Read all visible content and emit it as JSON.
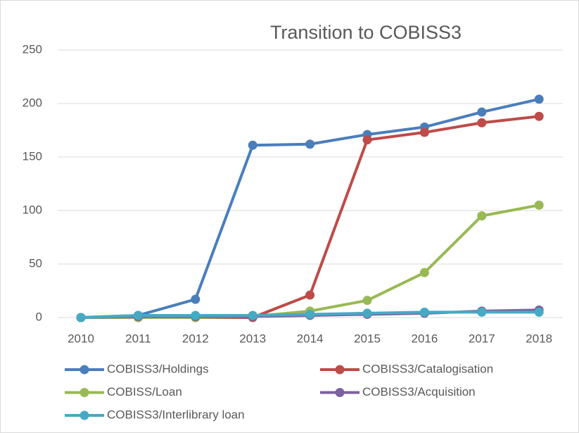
{
  "chart_data": {
    "type": "line",
    "title": "Transition to COBISS3",
    "categories": [
      "2010",
      "2011",
      "2012",
      "2013",
      "2014",
      "2015",
      "2016",
      "2017",
      "2018"
    ],
    "series": [
      {
        "name": "COBISS3/Holdings",
        "color": "#4a7ebb",
        "values": [
          0,
          2,
          17,
          161,
          162,
          171,
          178,
          192,
          204
        ]
      },
      {
        "name": "COBISS3/Catalogisation",
        "color": "#be4b48",
        "values": [
          0,
          0,
          0,
          0,
          21,
          166,
          173,
          182,
          188
        ]
      },
      {
        "name": "COBISS/Loan",
        "color": "#98b954",
        "values": [
          0,
          0,
          0,
          1,
          6,
          16,
          42,
          95,
          105
        ]
      },
      {
        "name": "COBISS3/Acquisition",
        "color": "#7d60a0",
        "values": [
          0,
          1,
          1,
          1,
          2,
          3,
          4,
          6,
          7
        ]
      },
      {
        "name": "COBISS3/Interlibrary loan",
        "color": "#46aac5",
        "values": [
          0,
          2,
          2,
          2,
          3,
          4,
          5,
          5,
          5
        ]
      }
    ],
    "ylim": [
      0,
      250
    ],
    "yticks": [
      0,
      50,
      100,
      150,
      200,
      250
    ],
    "grid": true,
    "legend": "bottom"
  }
}
